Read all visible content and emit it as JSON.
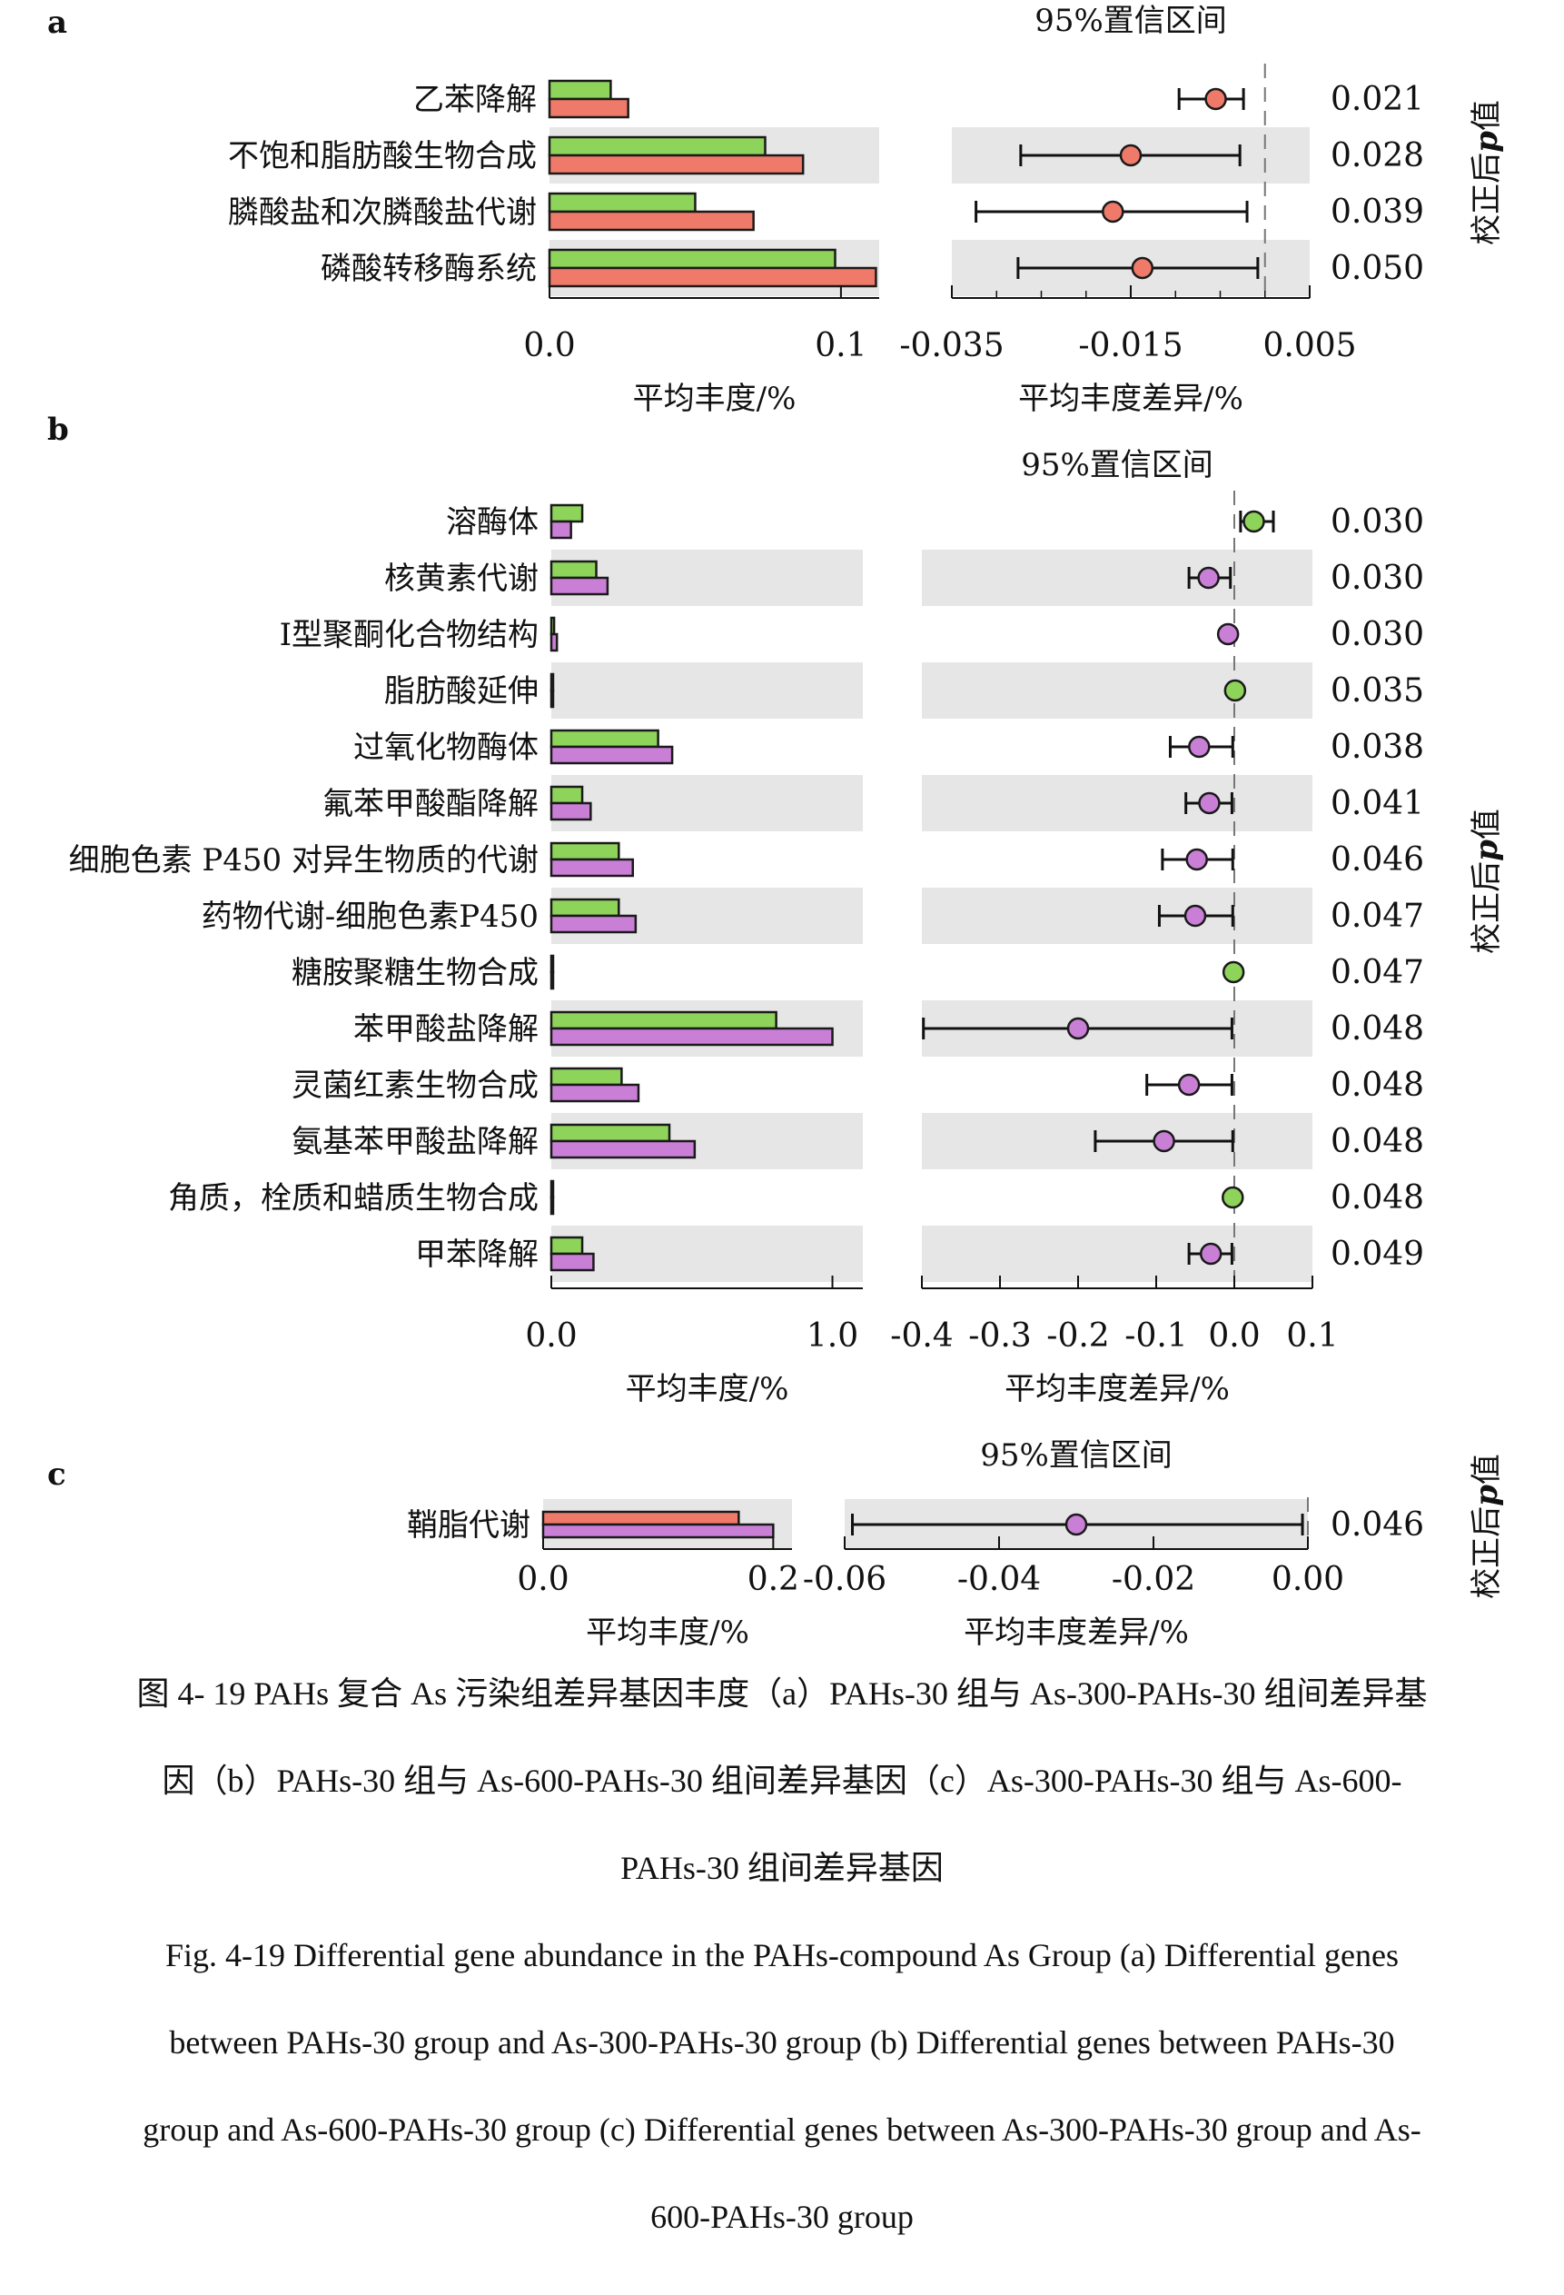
{
  "figure": {
    "caption_cn": [
      "图 4- 19 PAHs 复合 As 污染组差异基因丰度（a）PAHs-30 组与 As-300-PAHs-30 组间差异基",
      "因（b）PAHs-30 组与 As-600-PAHs-30 组间差异基因（c）As-300-PAHs-30 组与 As-600-",
      "PAHs-30 组间差异基因"
    ],
    "caption_en": [
      "Fig. 4-19 Differential gene abundance in the PAHs-compound As Group (a) Differential genes",
      "between PAHs-30 group and As-300-PAHs-30 group (b) Differential genes between PAHs-30",
      "group and As-600-PAHs-30 group (c) Differential genes between As-300-PAHs-30 group and As-",
      "600-PAHs-30 group"
    ]
  },
  "chart_data": [
    {
      "type": "bar",
      "panel": "a",
      "categories": [
        "乙苯降解",
        "不饱和脂肪酸生物合成",
        "膦酸盐和次膦酸盐代谢",
        "磷酸转移酶系统"
      ],
      "series": [
        {
          "color": "#8ed35a",
          "values": [
            0.021,
            0.074,
            0.05,
            0.098
          ]
        },
        {
          "color": "#f07a6a",
          "values": [
            0.027,
            0.087,
            0.07,
            0.112
          ]
        }
      ],
      "xlabel": "平均丰度/%",
      "xlim": [
        0,
        0.11
      ],
      "xticks": [
        "0.0",
        "0.1"
      ],
      "xtick_values": [
        0,
        0.1
      ],
      "shaded_rows": [
        1,
        3
      ]
    },
    {
      "type": "scatter",
      "panel": "a",
      "title": "95%置信区间",
      "categories": [
        "乙苯降解",
        "不饱和脂肪酸生物合成",
        "膦酸盐和次膦酸盐代谢",
        "磷酸转移酶系统"
      ],
      "estimate": [
        -0.0055,
        -0.015,
        -0.017,
        -0.0137
      ],
      "ci_low": [
        -0.0096,
        -0.0273,
        -0.0323,
        -0.0276
      ],
      "ci_high": [
        -0.0024,
        -0.0028,
        -0.002,
        -0.0008
      ],
      "point_color": "#f07a6a",
      "xlabel": "平均丰度差异/%",
      "xlim": [
        -0.035,
        0.005
      ],
      "xticks": [
        "-0.035",
        "-0.015",
        "0.005"
      ],
      "xtick_values": [
        -0.035,
        -0.015,
        0.005
      ],
      "pvalues": [
        "0.021",
        "0.028",
        "0.039",
        "0.050"
      ],
      "plabel_prefix": "校正后",
      "plabel_p": "p",
      "plabel_suffix": "值"
    },
    {
      "type": "bar",
      "panel": "b",
      "categories": [
        "溶酶体",
        "核黄素代谢",
        "I型聚酮化合物结构",
        "脂肪酸延伸",
        "过氧化物酶体",
        "氟苯甲酸酯降解",
        "细胞色素 P450 对异生物质的代谢",
        "药物代谢-细胞色素P450",
        "糖胺聚糖生物合成",
        "苯甲酸盐降解",
        "灵菌红素生物合成",
        "氨基苯甲酸盐降解",
        "角质，栓质和蜡质生物合成",
        "甲苯降解"
      ],
      "series": [
        {
          "color": "#8ed35a",
          "values": [
            0.11,
            0.16,
            0.01,
            0.005,
            0.38,
            0.11,
            0.24,
            0.24,
            0.005,
            0.8,
            0.25,
            0.42,
            0.004,
            0.11
          ]
        },
        {
          "color": "#c97fd6",
          "values": [
            0.07,
            0.2,
            0.02,
            0.003,
            0.43,
            0.14,
            0.29,
            0.3,
            0.003,
            1.0,
            0.31,
            0.51,
            0.003,
            0.15
          ]
        }
      ],
      "xlabel": "平均丰度/%",
      "xlim": [
        0,
        1.05
      ],
      "xticks": [
        "0.0",
        "1.0"
      ],
      "xtick_values": [
        0,
        1.0
      ],
      "shaded_rows": [
        1,
        3,
        5,
        7,
        9,
        11,
        13
      ]
    },
    {
      "type": "scatter",
      "panel": "b",
      "title": "95%置信区间",
      "categories": [
        "溶酶体",
        "核黄素代谢",
        "I型聚酮化合物结构",
        "脂肪酸延伸",
        "过氧化物酶体",
        "氟苯甲酸酯降解",
        "细胞色素 P450 对异生物质的代谢",
        "药物代谢-细胞色素P450",
        "糖胺聚糖生物合成",
        "苯甲酸盐降解",
        "灵菌红素生物合成",
        "氨基苯甲酸盐降解",
        "角质，栓质和蜡质生物合成",
        "甲苯降解"
      ],
      "estimate": [
        0.025,
        -0.033,
        -0.008,
        0.001,
        -0.045,
        -0.032,
        -0.048,
        -0.05,
        -0.001,
        -0.2,
        -0.058,
        -0.09,
        -0.002,
        -0.03
      ],
      "ci_low": [
        0.008,
        -0.058,
        -0.01,
        0.0,
        -0.082,
        -0.062,
        -0.092,
        -0.096,
        -0.002,
        -0.398,
        -0.112,
        -0.178,
        -0.003,
        -0.058
      ],
      "ci_high": [
        0.05,
        -0.005,
        -0.006,
        0.002,
        -0.002,
        -0.003,
        -0.002,
        -0.002,
        0.0,
        -0.003,
        -0.003,
        -0.002,
        -0.001,
        -0.003
      ],
      "point_colors": [
        "#8ed35a",
        "#c97fd6",
        "#c97fd6",
        "#8ed35a",
        "#c97fd6",
        "#c97fd6",
        "#c97fd6",
        "#c97fd6",
        "#8ed35a",
        "#c97fd6",
        "#c97fd6",
        "#c97fd6",
        "#8ed35a",
        "#c97fd6"
      ],
      "xlabel": "平均丰度差异/%",
      "xlim": [
        -0.4,
        0.1
      ],
      "xticks": [
        "-0.4",
        "-0.3",
        "-0.2",
        "-0.1",
        "0.0",
        "0.1"
      ],
      "xtick_values": [
        -0.4,
        -0.3,
        -0.2,
        -0.1,
        0.0,
        0.1
      ],
      "pvalues": [
        "0.030",
        "0.030",
        "0.030",
        "0.035",
        "0.038",
        "0.041",
        "0.046",
        "0.047",
        "0.047",
        "0.048",
        "0.048",
        "0.048",
        "0.048",
        "0.049"
      ],
      "plabel_prefix": "校正后",
      "plabel_p": "p",
      "plabel_suffix": "值"
    },
    {
      "type": "bar",
      "panel": "c",
      "categories": [
        "鞘脂代谢"
      ],
      "series": [
        {
          "color": "#f07a6a",
          "values": [
            0.17
          ]
        },
        {
          "color": "#c97fd6",
          "values": [
            0.2
          ]
        }
      ],
      "xlabel": "平均丰度/%",
      "xlim": [
        0,
        0.21
      ],
      "xticks": [
        "0.0",
        "0.2"
      ],
      "xtick_values": [
        0,
        0.2
      ],
      "shaded_rows": [
        0
      ]
    },
    {
      "type": "scatter",
      "panel": "c",
      "title": "95%置信区间",
      "categories": [
        "鞘脂代谢"
      ],
      "estimate": [
        -0.03
      ],
      "ci_low": [
        -0.059
      ],
      "ci_high": [
        -0.0007
      ],
      "point_color": "#c97fd6",
      "xlabel": "平均丰度差异/%",
      "xlim": [
        -0.06,
        0.0
      ],
      "xticks": [
        "-0.06",
        "-0.04",
        "-0.02",
        "0.00"
      ],
      "xtick_values": [
        -0.06,
        -0.04,
        -0.02,
        0.0
      ],
      "pvalues": [
        "0.046"
      ],
      "plabel_prefix": "校正后",
      "plabel_p": "p",
      "plabel_suffix": "值"
    }
  ]
}
